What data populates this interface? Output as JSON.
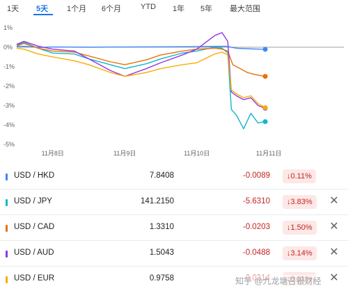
{
  "tabs": [
    "1天",
    "5天",
    "1个月",
    "6个月",
    "YTD",
    "1年",
    "5年",
    "最大范围"
  ],
  "active_tab": "5天",
  "colors": {
    "accent": "#1a73e8",
    "negative": "#c5221f",
    "negative_bg": "#fce8e6"
  },
  "chart_data": {
    "type": "line",
    "x_tick_labels": [
      "11月8日",
      "11月9日",
      "11月10日",
      "11月11日"
    ],
    "y_tick_labels": [
      "1%",
      "0%",
      "-1%",
      "-2%",
      "-3%",
      "-4%",
      "-5%"
    ],
    "ylim": [
      -5,
      1
    ],
    "grid": false,
    "series": [
      {
        "name": "USD / HKD",
        "color": "#4285f4",
        "x": [
          0,
          0.1,
          0.3,
          0.5,
          1.0,
          1.5,
          2.0,
          2.5,
          2.9,
          3.05,
          3.2,
          3.45
        ],
        "y": [
          0.02,
          0.05,
          -0.01,
          0.01,
          0.0,
          0.01,
          0.02,
          0.03,
          0.05,
          -0.05,
          -0.08,
          -0.11
        ]
      },
      {
        "name": "USD / JPY",
        "color": "#12b5cb",
        "x": [
          0,
          0.1,
          0.3,
          0.5,
          0.8,
          1.0,
          1.3,
          1.5,
          1.8,
          2.0,
          2.3,
          2.5,
          2.75,
          2.85,
          2.93,
          2.98,
          3.05,
          3.15,
          3.25,
          3.35,
          3.45
        ],
        "y": [
          0.1,
          0.25,
          -0.05,
          -0.3,
          -0.35,
          -0.6,
          -0.9,
          -1.1,
          -0.85,
          -0.6,
          -0.3,
          -0.2,
          0.0,
          -0.05,
          -0.3,
          -3.2,
          -3.5,
          -4.2,
          -3.4,
          -3.9,
          -3.83
        ]
      },
      {
        "name": "USD / CAD",
        "color": "#e8710a",
        "x": [
          0,
          0.1,
          0.3,
          0.5,
          0.8,
          1.0,
          1.3,
          1.5,
          1.8,
          2.0,
          2.3,
          2.5,
          2.75,
          2.85,
          2.93,
          3.0,
          3.1,
          3.2,
          3.3,
          3.45
        ],
        "y": [
          0.05,
          0.2,
          -0.05,
          -0.2,
          -0.25,
          -0.45,
          -0.75,
          -0.9,
          -0.65,
          -0.4,
          -0.2,
          -0.1,
          -0.05,
          -0.1,
          -0.2,
          -0.9,
          -1.1,
          -1.3,
          -1.4,
          -1.5
        ]
      },
      {
        "name": "USD / AUD",
        "color": "#9334e6",
        "x": [
          0,
          0.1,
          0.3,
          0.5,
          0.8,
          1.0,
          1.3,
          1.5,
          1.8,
          2.0,
          2.3,
          2.5,
          2.75,
          2.85,
          2.93,
          2.98,
          3.05,
          3.15,
          3.25,
          3.35,
          3.45
        ],
        "y": [
          0.15,
          0.3,
          0.05,
          -0.1,
          -0.2,
          -0.6,
          -1.2,
          -1.5,
          -1.1,
          -0.8,
          -0.4,
          -0.1,
          0.6,
          0.75,
          0.3,
          -2.3,
          -2.5,
          -2.7,
          -2.6,
          -3.0,
          -3.14
        ]
      },
      {
        "name": "USD / EUR",
        "color": "#f9ab00",
        "x": [
          0,
          0.1,
          0.3,
          0.5,
          0.8,
          1.0,
          1.3,
          1.5,
          1.8,
          2.0,
          2.3,
          2.5,
          2.75,
          2.85,
          2.93,
          2.98,
          3.05,
          3.15,
          3.25,
          3.35,
          3.45
        ],
        "y": [
          -0.05,
          -0.1,
          -0.35,
          -0.5,
          -0.7,
          -0.9,
          -1.3,
          -1.5,
          -1.3,
          -1.1,
          -0.9,
          -0.8,
          -0.35,
          -0.25,
          -0.4,
          -2.2,
          -2.4,
          -2.6,
          -2.5,
          -2.9,
          -3.11
        ]
      }
    ]
  },
  "rows": [
    {
      "pair": "USD / HKD",
      "price": "7.8408",
      "change": "-0.0089",
      "percent": "↓0.11%",
      "color": "#4285f4",
      "removable": false
    },
    {
      "pair": "USD / JPY",
      "price": "141.2150",
      "change": "-5.6310",
      "percent": "↓3.83%",
      "color": "#12b5cb",
      "removable": true
    },
    {
      "pair": "USD / CAD",
      "price": "1.3310",
      "change": "-0.0203",
      "percent": "↓1.50%",
      "color": "#e8710a",
      "removable": true
    },
    {
      "pair": "USD / AUD",
      "price": "1.5043",
      "change": "-0.0488",
      "percent": "↓3.14%",
      "color": "#9334e6",
      "removable": true
    },
    {
      "pair": "USD / EUR",
      "price": "0.9758",
      "change": "-0.0314",
      "percent": "↓3.11%",
      "color": "#f9ab00",
      "removable": true
    }
  ],
  "remove_icon": "close-icon",
  "remove_symbol": "✕",
  "watermark": "知乎 @九龙塘召银财经"
}
